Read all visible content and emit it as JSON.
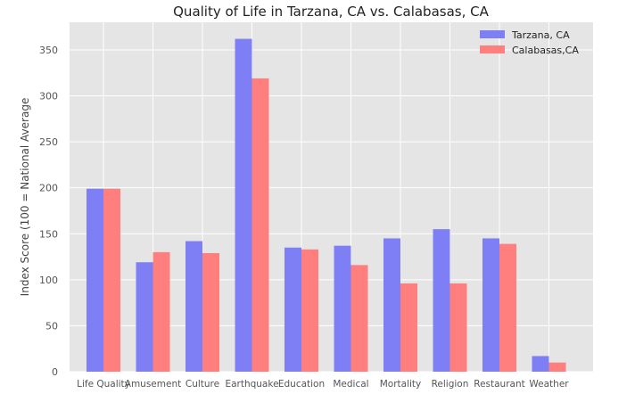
{
  "chart_data": {
    "type": "bar",
    "title": "Quality of Life in Tarzana, CA vs. Calabasas, CA",
    "xlabel": "",
    "ylabel": "Index Score (100 = National Average",
    "categories": [
      "Life Quality",
      "Amusement",
      "Culture",
      "Earthquake",
      "Education",
      "Medical",
      "Mortality",
      "Religion",
      "Restaurant",
      "Weather"
    ],
    "series": [
      {
        "name": "Tarzana, CA",
        "color": "#7f7ff5",
        "values": [
          199,
          119,
          142,
          362,
          135,
          137,
          145,
          155,
          145,
          17
        ]
      },
      {
        "name": "Calabasas,CA",
        "color": "#ff7f7f",
        "values": [
          199,
          130,
          129,
          319,
          133,
          116,
          96,
          96,
          139,
          10
        ]
      }
    ],
    "ylim": [
      0,
      380
    ],
    "yticks": [
      0,
      50,
      100,
      150,
      200,
      250,
      300,
      350
    ],
    "grid": true,
    "legend_position": "top-right",
    "background": "#e5e5e5"
  }
}
